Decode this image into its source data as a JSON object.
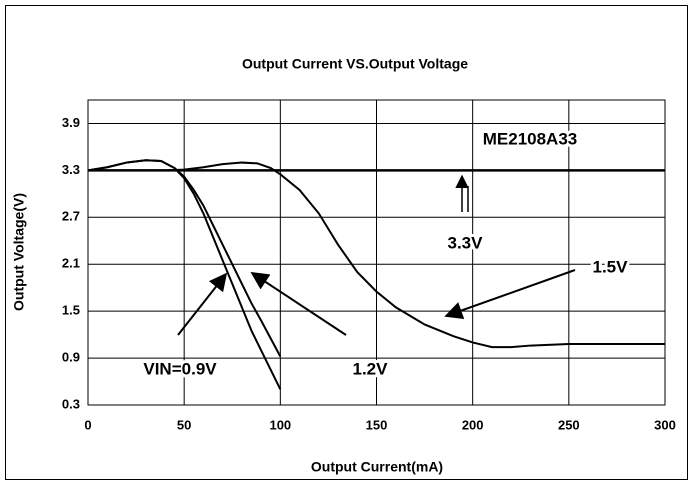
{
  "chart_data": {
    "type": "line",
    "title": "Output Current VS.Output Voltage",
    "xlabel": "Output Current(mA)",
    "ylabel": "Output Voltage(V)",
    "xlim": [
      0,
      300
    ],
    "xticks": [
      0,
      50,
      100,
      150,
      200,
      250,
      300
    ],
    "ylim": [
      0.3,
      4.2
    ],
    "yticks": [
      0.3,
      0.9,
      1.5,
      2.1,
      2.7,
      3.3,
      3.9
    ],
    "grid": true,
    "annotations": [
      "ME2108A33"
    ],
    "series": [
      {
        "name": "VIN=0.9V",
        "color": "#000000",
        "x": [
          0,
          10,
          20,
          30,
          38,
          45,
          50,
          55,
          60,
          65,
          70,
          75,
          80,
          85,
          90,
          95,
          100
        ],
        "values": [
          3.3,
          3.34,
          3.4,
          3.43,
          3.42,
          3.33,
          3.2,
          3.0,
          2.75,
          2.45,
          2.15,
          1.85,
          1.55,
          1.25,
          1.0,
          0.75,
          0.5
        ]
      },
      {
        "name": "1.2V",
        "color": "#000000",
        "x": [
          0,
          10,
          20,
          30,
          38,
          45,
          50,
          55,
          60,
          65,
          70,
          75,
          80,
          85,
          90,
          95,
          100
        ],
        "values": [
          3.3,
          3.34,
          3.4,
          3.43,
          3.42,
          3.33,
          3.22,
          3.05,
          2.85,
          2.6,
          2.35,
          2.1,
          1.85,
          1.6,
          1.38,
          1.15,
          0.92
        ]
      },
      {
        "name": "1.5V",
        "color": "#000000",
        "x": [
          0,
          40,
          50,
          60,
          70,
          80,
          88,
          95,
          100,
          110,
          120,
          130,
          140,
          150,
          160,
          175,
          190,
          200,
          210,
          220,
          230,
          250,
          275,
          300
        ],
        "values": [
          3.3,
          3.3,
          3.31,
          3.34,
          3.38,
          3.4,
          3.39,
          3.33,
          3.25,
          3.05,
          2.75,
          2.35,
          2.0,
          1.75,
          1.55,
          1.33,
          1.18,
          1.1,
          1.04,
          1.04,
          1.06,
          1.08,
          1.08,
          1.08
        ]
      },
      {
        "name": "3.3V",
        "color": "#000000",
        "x": [
          0,
          300
        ],
        "values": [
          3.3,
          3.3
        ]
      }
    ]
  }
}
